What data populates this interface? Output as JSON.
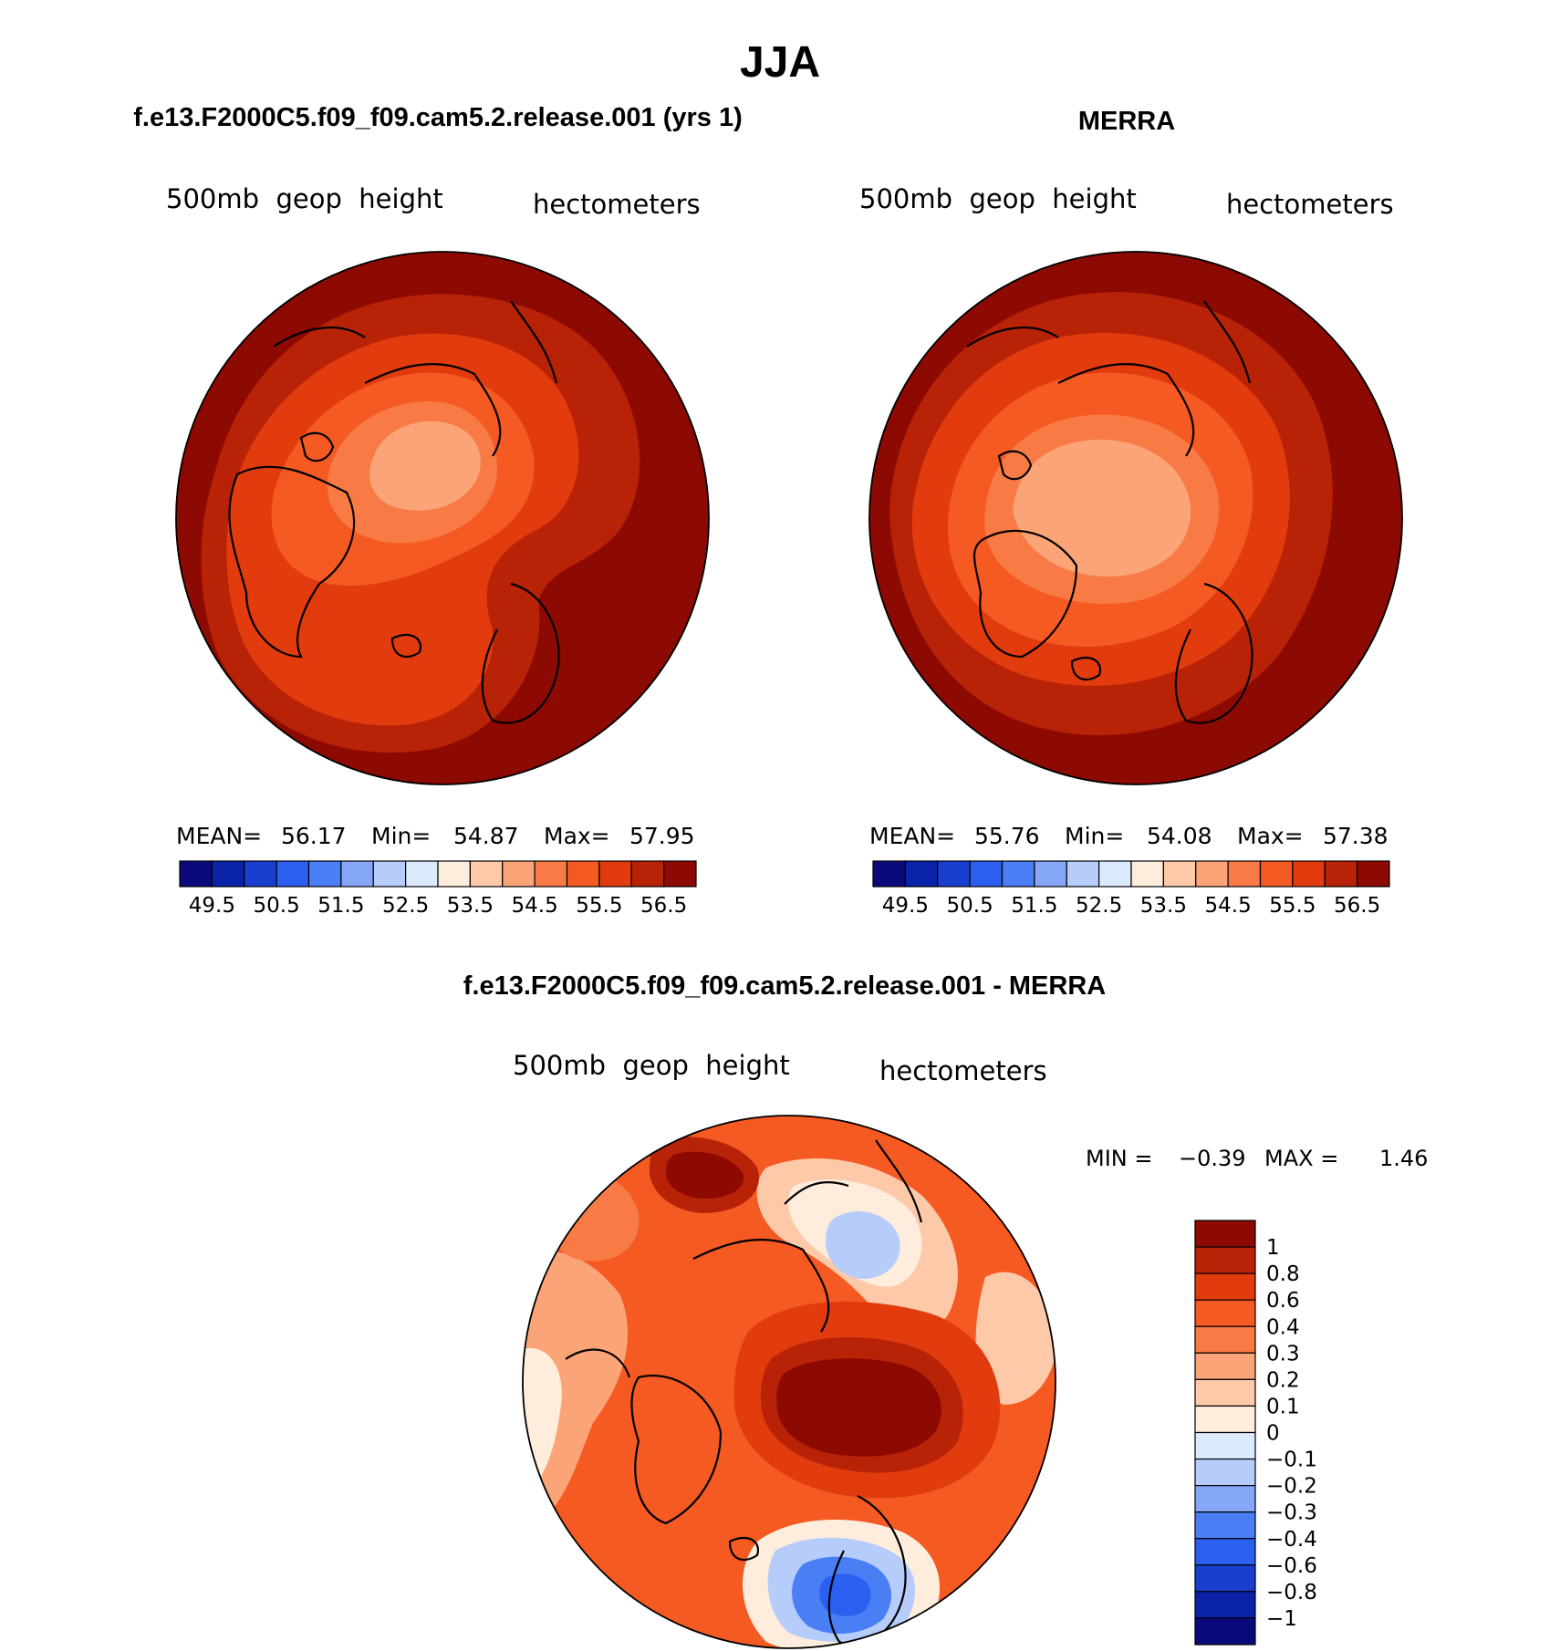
{
  "page": {
    "title": "JJA"
  },
  "chart_data": [
    {
      "type": "heatmap",
      "title": "f.e13.F2000C5.f09_f09.cam5.2.release.001 (yrs 1)",
      "field_label": "500mb  geop  height",
      "units": "hectometers",
      "projection": "north-polar-stereographic",
      "stats": {
        "mean_label": "MEAN=",
        "mean": "56.17",
        "min_label": "Min=",
        "min": "54.87",
        "max_label": "Max=",
        "max": "57.95"
      },
      "colorbar": {
        "orientation": "horizontal",
        "levels": [
          49.5,
          50,
          50.5,
          51,
          51.5,
          52,
          52.5,
          53,
          53.5,
          54,
          54.5,
          55,
          55.5,
          56,
          56.5
        ],
        "tick_labels": [
          "49.5",
          "50.5",
          "51.5",
          "52.5",
          "53.5",
          "54.5",
          "55.5",
          "56.5"
        ],
        "colors": [
          "#0a0a7a",
          "#0a22a8",
          "#1a3fd0",
          "#2a5ff0",
          "#4a7ef5",
          "#86a6f8",
          "#b6ccfb",
          "#dceafe",
          "#feeddc",
          "#fdc9a8",
          "#fba478",
          "#f87a45",
          "#f45a22",
          "#e23b0e",
          "#b82207",
          "#8c0a02"
        ]
      }
    },
    {
      "type": "heatmap",
      "title": "MERRA",
      "field_label": "500mb  geop  height",
      "units": "hectometers",
      "projection": "north-polar-stereographic",
      "stats": {
        "mean_label": "MEAN=",
        "mean": "55.76",
        "min_label": "Min=",
        "min": "54.08",
        "max_label": "Max=",
        "max": "57.38"
      },
      "colorbar": {
        "orientation": "horizontal",
        "levels": [
          49.5,
          50,
          50.5,
          51,
          51.5,
          52,
          52.5,
          53,
          53.5,
          54,
          54.5,
          55,
          55.5,
          56,
          56.5
        ],
        "tick_labels": [
          "49.5",
          "50.5",
          "51.5",
          "52.5",
          "53.5",
          "54.5",
          "55.5",
          "56.5"
        ],
        "colors": [
          "#0a0a7a",
          "#0a22a8",
          "#1a3fd0",
          "#2a5ff0",
          "#4a7ef5",
          "#86a6f8",
          "#b6ccfb",
          "#dceafe",
          "#feeddc",
          "#fdc9a8",
          "#fba478",
          "#f87a45",
          "#f45a22",
          "#e23b0e",
          "#b82207",
          "#8c0a02"
        ]
      }
    },
    {
      "type": "heatmap",
      "title": "f.e13.F2000C5.f09_f09.cam5.2.release.001 - MERRA",
      "field_label": "500mb  geop  height",
      "units": "hectometers",
      "projection": "north-polar-stereographic",
      "stats": {
        "min_label": "MIN =",
        "min": "−0.39",
        "max_label": "MAX =",
        "max": "1.46"
      },
      "colorbar": {
        "orientation": "vertical",
        "tick_labels": [
          "1",
          "0.8",
          "0.6",
          "0.4",
          "0.3",
          "0.2",
          "0.1",
          "0",
          "−0.1",
          "−0.2",
          "−0.3",
          "−0.4",
          "−0.6",
          "−0.8",
          "−1"
        ],
        "colors": [
          "#8c0a02",
          "#b82207",
          "#e23b0e",
          "#f45a22",
          "#f87a45",
          "#fba478",
          "#fdc9a8",
          "#feeddc",
          "#dceafe",
          "#b6ccfb",
          "#86a6f8",
          "#4a7ef5",
          "#2a5ff0",
          "#1a3fd0",
          "#0a22a8",
          "#0a0a7a"
        ]
      }
    }
  ]
}
